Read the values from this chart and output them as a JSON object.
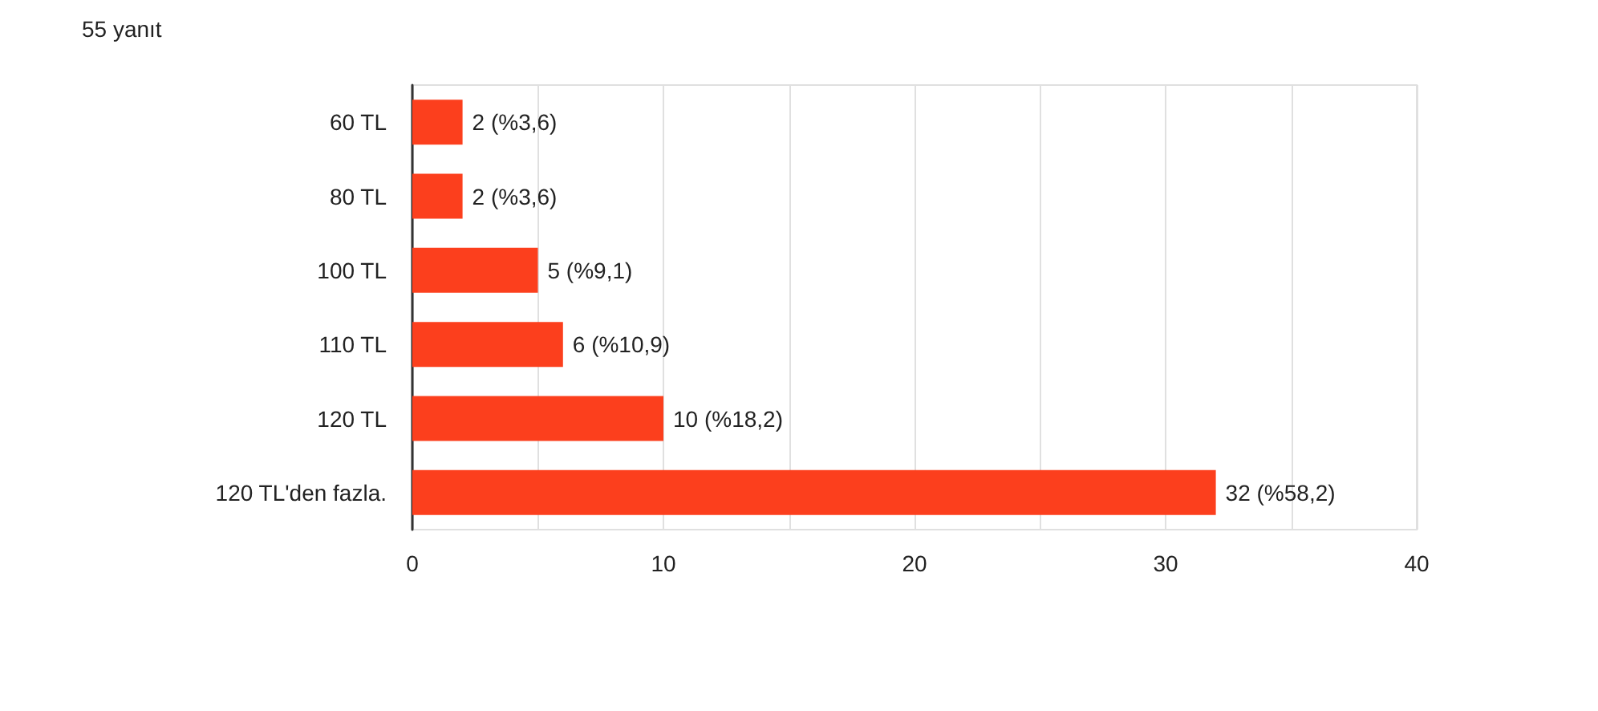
{
  "chart_data": {
    "type": "bar",
    "orientation": "horizontal",
    "title": "55 yanıt",
    "categories": [
      "60 TL",
      "80 TL",
      "100 TL",
      "110 TL",
      "120 TL",
      "120 TL'den fazla."
    ],
    "values": [
      2,
      2,
      5,
      6,
      10,
      32
    ],
    "value_labels": [
      "2 (%3,6)",
      "2 (%3,6)",
      "5 (%9,1)",
      "6 (%10,9)",
      "10 (%18,2)",
      "32 (%58,2)"
    ],
    "color": "#fc3f1d",
    "xlim": [
      0,
      40
    ],
    "xticks": [
      0,
      {
        "value": 5,
        "label": null
      },
      10,
      {
        "value": 15,
        "label": null
      },
      20,
      {
        "value": 25,
        "label": null
      },
      30,
      {
        "value": 35,
        "label": null
      },
      40
    ],
    "grid": "x"
  }
}
